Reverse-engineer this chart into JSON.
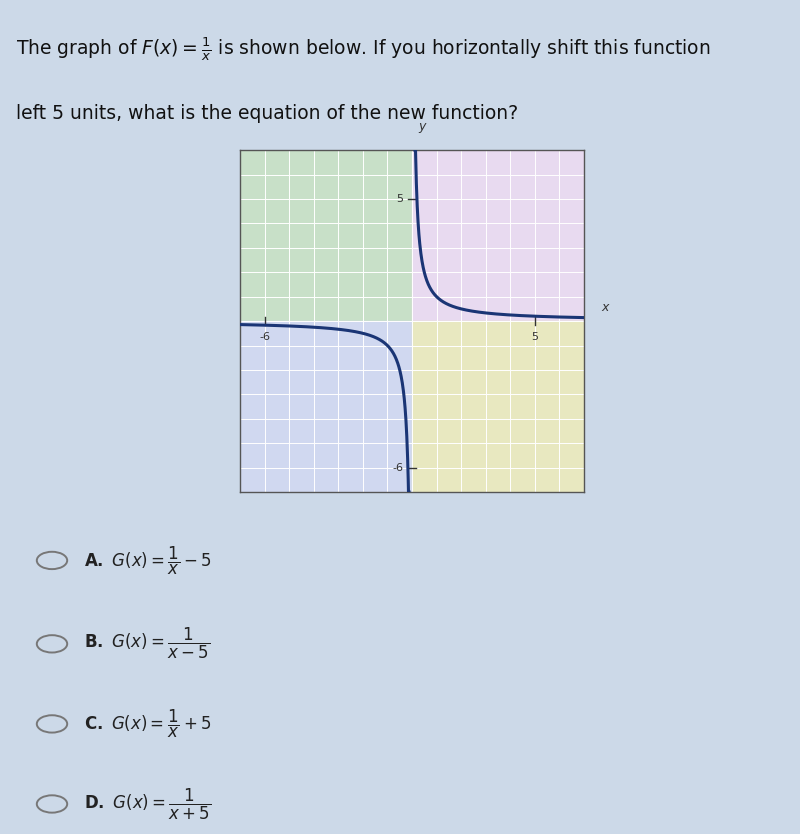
{
  "overall_bg": "#ccd9e8",
  "graph_bg_q1": "#e8daf0",
  "graph_bg_q2": "#c8e0c8",
  "graph_bg_q3": "#d0d8f0",
  "graph_bg_q4": "#e8e8c0",
  "options_bg": "#e8eef4",
  "title_text1": "The graph of $F(x) = \\frac{1}{x}$ is shown below. If you horizontally shift this function",
  "title_text2": "left 5 units, what is the equation of the new function?",
  "curve_color": "#1a3575",
  "curve_lw": 2.2,
  "axis_color": "#2244aa",
  "axis_lw": 1.5,
  "grid_color": "#ffffff",
  "grid_lw": 0.7,
  "border_color": "#555555",
  "border_lw": 1.0,
  "xlim": [
    -7,
    7
  ],
  "ylim": [
    -7,
    7
  ],
  "xtick_labels": [
    [
      -6,
      "-6"
    ],
    [
      5,
      "5"
    ]
  ],
  "ytick_labels": [
    [
      5,
      "5"
    ],
    [
      -6,
      "-6"
    ]
  ],
  "option_circle_color": "#777777",
  "option_text_color": "#222222",
  "font_size_title": 13.5,
  "font_size_options": 12
}
